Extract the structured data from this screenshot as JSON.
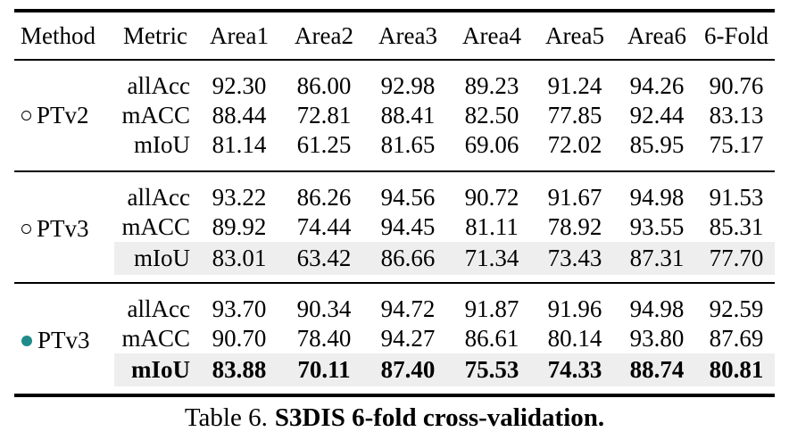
{
  "table": {
    "columns": [
      "Method",
      "Metric",
      "Area1",
      "Area2",
      "Area3",
      "Area4",
      "Area5",
      "Area6",
      "6-Fold"
    ],
    "groups": [
      {
        "method": "PTv2",
        "marker": "open-circle",
        "rows": [
          {
            "metric": "allAcc",
            "values": [
              "92.30",
              "86.00",
              "92.98",
              "89.23",
              "91.24",
              "94.26",
              "90.76"
            ],
            "shaded": false,
            "bold": false
          },
          {
            "metric": "mACC",
            "values": [
              "88.44",
              "72.81",
              "88.41",
              "82.50",
              "77.85",
              "92.44",
              "83.13"
            ],
            "shaded": false,
            "bold": false
          },
          {
            "metric": "mIoU",
            "values": [
              "81.14",
              "61.25",
              "81.65",
              "69.06",
              "72.02",
              "85.95",
              "75.17"
            ],
            "shaded": false,
            "bold": false
          }
        ]
      },
      {
        "method": "PTv3",
        "marker": "open-circle",
        "rows": [
          {
            "metric": "allAcc",
            "values": [
              "93.22",
              "86.26",
              "94.56",
              "90.72",
              "91.67",
              "94.98",
              "91.53"
            ],
            "shaded": false,
            "bold": false
          },
          {
            "metric": "mACC",
            "values": [
              "89.92",
              "74.44",
              "94.45",
              "81.11",
              "78.92",
              "93.55",
              "85.31"
            ],
            "shaded": false,
            "bold": false
          },
          {
            "metric": "mIoU",
            "values": [
              "83.01",
              "63.42",
              "86.66",
              "71.34",
              "73.43",
              "87.31",
              "77.70"
            ],
            "shaded": true,
            "bold": false
          }
        ]
      },
      {
        "method": "PTv3",
        "marker": "filled-circle",
        "rows": [
          {
            "metric": "allAcc",
            "values": [
              "93.70",
              "90.34",
              "94.72",
              "91.87",
              "91.96",
              "94.98",
              "92.59"
            ],
            "shaded": false,
            "bold": false
          },
          {
            "metric": "mACC",
            "values": [
              "90.70",
              "78.40",
              "94.27",
              "86.61",
              "80.14",
              "93.80",
              "87.69"
            ],
            "shaded": false,
            "bold": false
          },
          {
            "metric": "mIoU",
            "values": [
              "83.88",
              "70.11",
              "87.40",
              "75.53",
              "74.33",
              "88.74",
              "80.81"
            ],
            "shaded": true,
            "bold": true
          }
        ]
      }
    ]
  },
  "caption": {
    "prefix": "Table 6.",
    "title": "S3DIS 6-fold cross-validation."
  },
  "colors": {
    "marker_teal": "#208b8b",
    "shade": "#eeeeee",
    "rule": "#000000",
    "text": "#000000"
  }
}
